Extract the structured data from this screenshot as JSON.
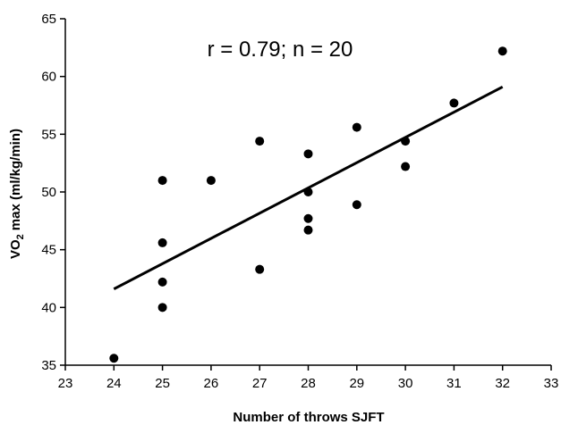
{
  "chart_data": {
    "type": "scatter",
    "title": "",
    "annotation": "r = 0.79; n = 20",
    "xlabel": "Number of throws SJFT",
    "ylabel_prefix": "VO",
    "ylabel_sub": "2",
    "ylabel_suffix": "max (ml/kg/min)",
    "xlim": [
      23,
      33
    ],
    "ylim": [
      35,
      65
    ],
    "xticks": [
      23,
      24,
      25,
      26,
      27,
      28,
      29,
      30,
      31,
      32,
      33
    ],
    "yticks": [
      35,
      40,
      45,
      50,
      55,
      60,
      65
    ],
    "grid": false,
    "points": [
      {
        "x": 24,
        "y": 35.6
      },
      {
        "x": 25,
        "y": 51.0
      },
      {
        "x": 25,
        "y": 45.6
      },
      {
        "x": 25,
        "y": 42.2
      },
      {
        "x": 25,
        "y": 40.0
      },
      {
        "x": 26,
        "y": 51.0
      },
      {
        "x": 27,
        "y": 54.4
      },
      {
        "x": 27,
        "y": 43.3
      },
      {
        "x": 28,
        "y": 53.3
      },
      {
        "x": 28,
        "y": 50.0
      },
      {
        "x": 28,
        "y": 47.7
      },
      {
        "x": 28,
        "y": 46.7
      },
      {
        "x": 29,
        "y": 55.6
      },
      {
        "x": 29,
        "y": 48.9
      },
      {
        "x": 30,
        "y": 54.4
      },
      {
        "x": 30,
        "y": 52.2
      },
      {
        "x": 31,
        "y": 57.7
      },
      {
        "x": 32,
        "y": 62.2
      }
    ],
    "trendline": {
      "x1": 24,
      "y1": 41.6,
      "x2": 32,
      "y2": 59.1
    },
    "colors": {
      "points": "#000000",
      "line": "#000000",
      "axis": "#000000"
    }
  }
}
